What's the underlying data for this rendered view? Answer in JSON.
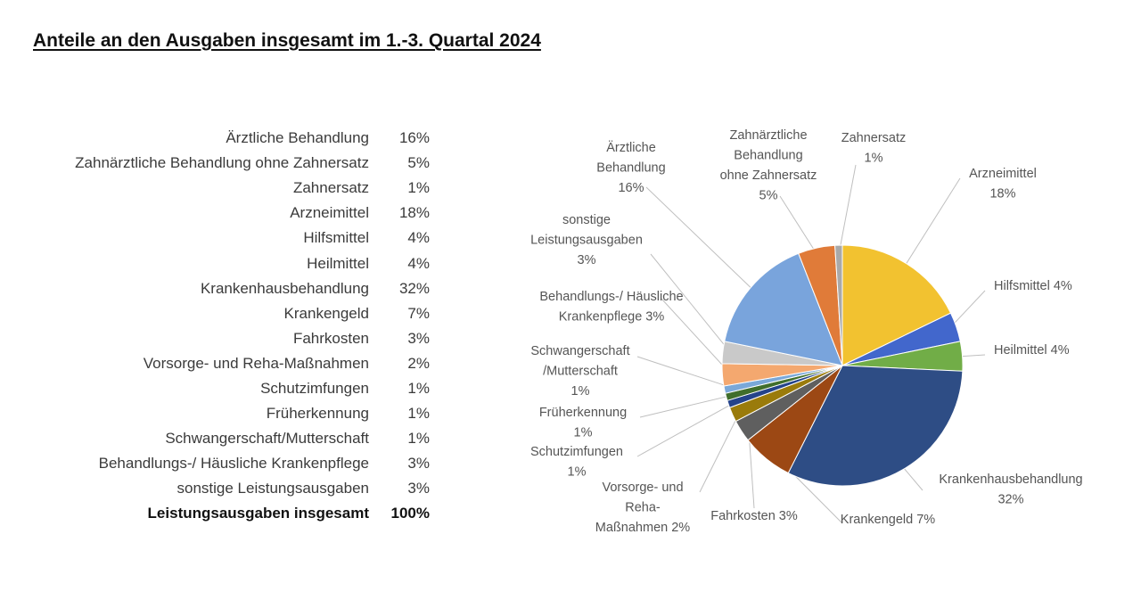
{
  "title": "Anteile an den Ausgaben insgesamt im 1.-3. Quartal 2024",
  "table": {
    "rows": [
      {
        "label": "Ärztliche Behandlung",
        "value": "16%"
      },
      {
        "label": "Zahnärztliche Behandlung ohne Zahnersatz",
        "value": "5%"
      },
      {
        "label": "Zahnersatz",
        "value": "1%"
      },
      {
        "label": "Arzneimittel",
        "value": "18%"
      },
      {
        "label": "Hilfsmittel",
        "value": "4%"
      },
      {
        "label": "Heilmittel",
        "value": "4%"
      },
      {
        "label": "Krankenhausbehandlung",
        "value": "32%"
      },
      {
        "label": "Krankengeld",
        "value": "7%"
      },
      {
        "label": "Fahrkosten",
        "value": "3%"
      },
      {
        "label": "Vorsorge- und Reha-Maßnahmen",
        "value": "2%"
      },
      {
        "label": "Schutzimfungen",
        "value": "1%"
      },
      {
        "label": "Früherkennung",
        "value": "1%"
      },
      {
        "label": "Schwangerschaft/Mutterschaft",
        "value": "1%"
      },
      {
        "label": "Behandlungs-/ Häusliche Krankenpflege",
        "value": "3%"
      },
      {
        "label": "sonstige Leistungsausgaben",
        "value": "3%"
      }
    ],
    "total": {
      "label": "Leistungsausgaben insgesamt",
      "value": "100%"
    }
  },
  "chart_data": {
    "type": "pie",
    "unit": "%",
    "start_angle_deg": 0,
    "direction": "clockwise",
    "slices": [
      {
        "label_lines": [
          "Arzneimittel",
          "18%"
        ],
        "value": 18,
        "color": "#f2c230"
      },
      {
        "label_lines": [
          "Hilfsmittel 4%"
        ],
        "value": 4,
        "color": "#4267cc"
      },
      {
        "label_lines": [
          "Heilmittel 4%"
        ],
        "value": 4,
        "color": "#71ad47"
      },
      {
        "label_lines": [
          "Krankenhausbehandlung",
          "32%"
        ],
        "value": 32,
        "color": "#2e4d85"
      },
      {
        "label_lines": [
          "Krankengeld 7%"
        ],
        "value": 7,
        "color": "#9c4814"
      },
      {
        "label_lines": [
          "Fahrkosten 3%"
        ],
        "value": 3,
        "color": "#5f5f5f"
      },
      {
        "label_lines": [
          "Vorsorge- und",
          "Reha-",
          "Maßnahmen 2%"
        ],
        "value": 2,
        "color": "#9a7b0b"
      },
      {
        "label_lines": [
          "Schutzimfungen",
          "1%"
        ],
        "value": 1,
        "color": "#24438a"
      },
      {
        "label_lines": [
          "Früherkennung",
          "1%"
        ],
        "value": 1,
        "color": "#406e2c"
      },
      {
        "label_lines": [
          "Schwangerschaft",
          "/Mutterschaft",
          "1%"
        ],
        "value": 1,
        "color": "#7aa8d8"
      },
      {
        "label_lines": [
          "Behandlungs-/ Häusliche",
          "Krankenpflege 3%"
        ],
        "value": 3,
        "color": "#f4a86f"
      },
      {
        "label_lines": [
          "sonstige",
          "Leistungsausgaben",
          "3%"
        ],
        "value": 3,
        "color": "#c9c9c9"
      },
      {
        "label_lines": [
          "Ärztliche",
          "Behandlung",
          "16%"
        ],
        "value": 16,
        "color": "#79a4dc"
      },
      {
        "label_lines": [
          "Zahnärztliche",
          "Behandlung",
          "ohne Zahnersatz",
          "5%"
        ],
        "value": 5,
        "color": "#e07b39"
      },
      {
        "label_lines": [
          "Zahnersatz",
          "1%"
        ],
        "value": 1,
        "color": "#a9a9a9"
      }
    ]
  }
}
